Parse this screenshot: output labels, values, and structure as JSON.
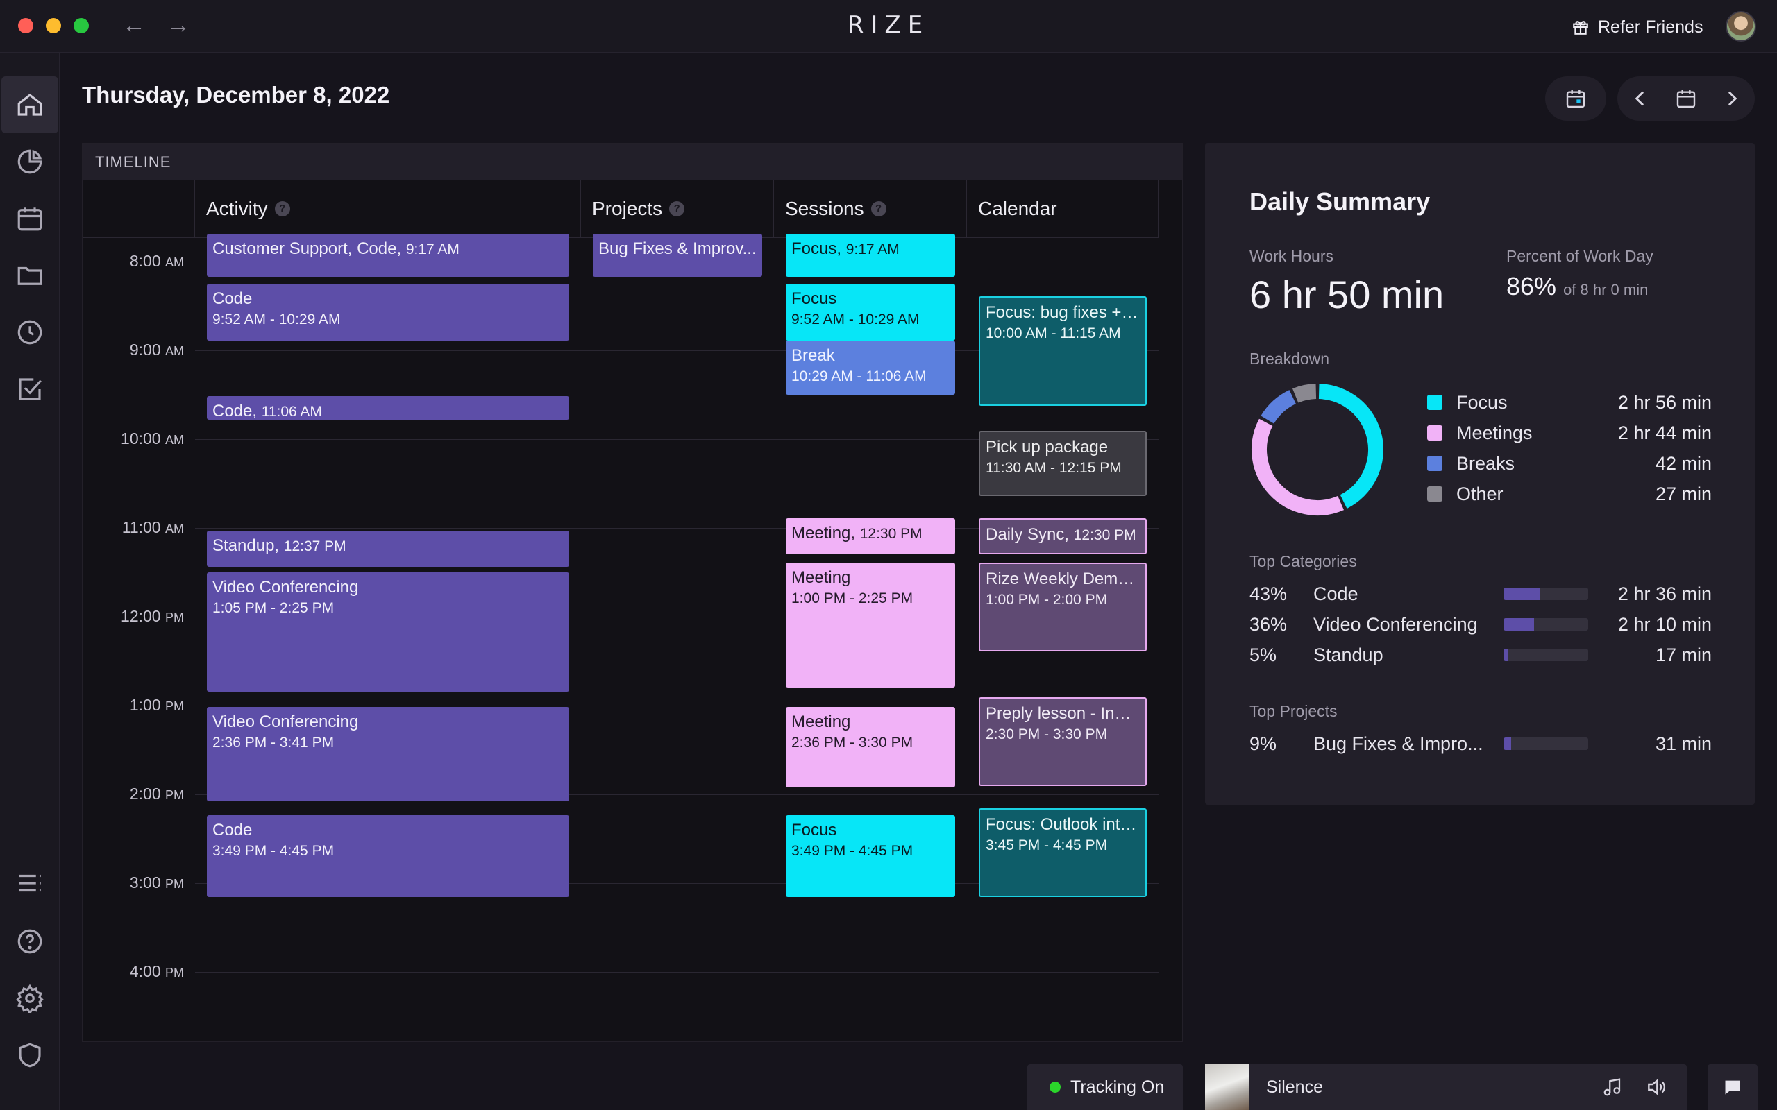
{
  "app": {
    "brand": "RIZE",
    "refer_label": "Refer Friends"
  },
  "page": {
    "title": "Thursday, December 8, 2022"
  },
  "timeline": {
    "header": "TIMELINE",
    "columns": {
      "activity": "Activity",
      "projects": "Projects",
      "sessions": "Sessions",
      "calendar": "Calendar"
    },
    "hours": [
      {
        "h": "8:00",
        "ap": "AM"
      },
      {
        "h": "9:00",
        "ap": "AM"
      },
      {
        "h": "10:00",
        "ap": "AM"
      },
      {
        "h": "11:00",
        "ap": "AM"
      },
      {
        "h": "12:00",
        "ap": "PM"
      },
      {
        "h": "1:00",
        "ap": "PM"
      },
      {
        "h": "2:00",
        "ap": "PM"
      },
      {
        "h": "3:00",
        "ap": "PM"
      },
      {
        "h": "4:00",
        "ap": "PM"
      }
    ],
    "activity": [
      {
        "title": "Customer Support, Code",
        "time": "9:17 AM",
        "inline": true
      },
      {
        "title": "Code",
        "time": "9:52 AM - 10:29 AM"
      },
      {
        "title": "Code",
        "time": "11:06 AM",
        "inline": true
      },
      {
        "title": "Standup",
        "time": "12:37 PM",
        "inline": true
      },
      {
        "title": "Video Conferencing",
        "time": "1:05 PM - 2:25 PM"
      },
      {
        "title": "Video Conferencing",
        "time": "2:36 PM - 3:41 PM"
      },
      {
        "title": "Code",
        "time": "3:49 PM - 4:45 PM"
      }
    ],
    "projects": [
      {
        "title": "Bug Fixes & Improv..."
      }
    ],
    "sessions": [
      {
        "title": "Focus",
        "time": "9:17 AM",
        "inline": true
      },
      {
        "title": "Focus",
        "time": "9:52 AM - 10:29 AM"
      },
      {
        "title": "Break",
        "time": "10:29 AM - 11:06 AM"
      },
      {
        "title": "Meeting",
        "time": "12:30 PM",
        "inline": true
      },
      {
        "title": "Meeting",
        "time": "1:00 PM - 2:25 PM"
      },
      {
        "title": "Meeting",
        "time": "2:36 PM - 3:30 PM"
      },
      {
        "title": "Focus",
        "time": "3:49 PM - 4:45 PM"
      }
    ],
    "calendar": [
      {
        "title": "Focus: bug fixes + i...",
        "time": "10:00 AM - 11:15 AM"
      },
      {
        "title": "Pick up package",
        "time": "11:30 AM - 12:15 PM"
      },
      {
        "title": "Daily Sync",
        "time": "12:30 PM",
        "inline": true
      },
      {
        "title": "Rize Weekly Demo ...",
        "time": "1:00 PM - 2:00 PM"
      },
      {
        "title": "Preply lesson - Ines...",
        "time": "2:30 PM - 3:30 PM"
      },
      {
        "title": "Focus: Outlook inte...",
        "time": "3:45 PM - 4:45 PM"
      }
    ]
  },
  "summary": {
    "title": "Daily Summary",
    "work_hours_label": "Work Hours",
    "work_hours": "6 hr 50 min",
    "percent_label": "Percent of Work Day",
    "percent": "86%",
    "percent_of": "of 8 hr 0 min",
    "breakdown_label": "Breakdown",
    "breakdown": [
      {
        "name": "Focus",
        "value": "2 hr 56 min",
        "minutes": 176,
        "color": "#07e6f7"
      },
      {
        "name": "Meetings",
        "value": "2 hr 44 min",
        "minutes": 164,
        "color": "#f1b2f7"
      },
      {
        "name": "Breaks",
        "value": "42 min",
        "minutes": 42,
        "color": "#5c80de"
      },
      {
        "name": "Other",
        "value": "27 min",
        "minutes": 27,
        "color": "#8a8890"
      }
    ],
    "top_categories_label": "Top Categories",
    "top_categories": [
      {
        "pct": "43%",
        "name": "Code",
        "value": "2 hr 36 min",
        "fill": 0.43
      },
      {
        "pct": "36%",
        "name": "Video Conferencing",
        "value": "2 hr 10 min",
        "fill": 0.36
      },
      {
        "pct": "5%",
        "name": "Standup",
        "value": "17 min",
        "fill": 0.05
      }
    ],
    "top_projects_label": "Top Projects",
    "top_projects": [
      {
        "pct": "9%",
        "name": "Bug Fixes & Impro...",
        "value": "31 min",
        "fill": 0.09
      }
    ]
  },
  "bottom": {
    "tracking": "Tracking On",
    "track_name": "Silence"
  },
  "colors": {
    "purple": "#5d4ea8",
    "cyan": "#07e6f7",
    "pink": "#f1b2f7",
    "blue": "#5c80de",
    "teal": "#0e5d69"
  }
}
